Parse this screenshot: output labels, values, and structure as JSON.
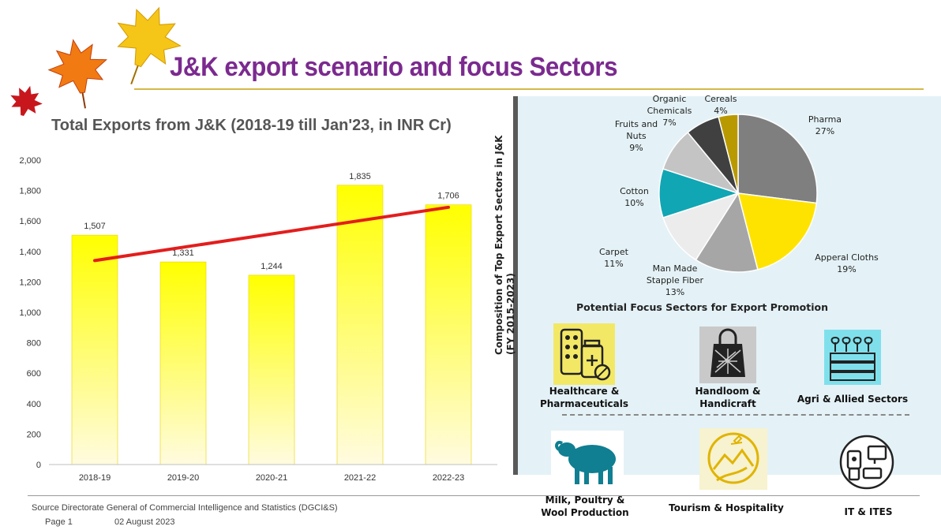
{
  "slide": {
    "title": "J&K export scenario and focus Sectors",
    "source": "Source Directorate General of Commercial Intelligence and Statistics (DGCI&S)",
    "page_label": "Page 1",
    "date": "02 August 2023"
  },
  "chart_data": [
    {
      "type": "bar",
      "title": "Total Exports from J&K (2018-19 till Jan'23, in INR Cr)",
      "categories": [
        "2018-19",
        "2019-20",
        "2020-21",
        "2021-22",
        "2022-23"
      ],
      "values": [
        1507,
        1331,
        1244,
        1835,
        1706
      ],
      "data_labels": [
        "1,507",
        "1,331",
        "1,244",
        "1,835",
        "1,706"
      ],
      "ylim": [
        0,
        2000
      ],
      "yticks": [
        "0",
        "200",
        "400",
        "600",
        "800",
        "1,000",
        "1,200",
        "1,400",
        "1,600",
        "1,800",
        "2,000"
      ],
      "trendline": {
        "from": 1340,
        "to": 1690
      },
      "colors": {
        "bar_top": "#ffff00",
        "bar_bottom": "#fffbe0",
        "trend": "#e31d1d"
      }
    },
    {
      "type": "pie",
      "ylabel": "Composition of Top Export Sectors in J&K (FY 2015-2023)",
      "slices": [
        {
          "label": "Pharma",
          "pct": "27%",
          "value": 27,
          "color": "#7f7f7f"
        },
        {
          "label": "Apperal Cloths",
          "pct": "19%",
          "value": 19,
          "color": "#ffe300"
        },
        {
          "label": "Man Made Stapple Fiber",
          "pct": "13%",
          "value": 13,
          "color": "#a6a6a6"
        },
        {
          "label": "Carpet",
          "pct": "11%",
          "value": 11,
          "color": "#ececec"
        },
        {
          "label": "Cotton",
          "pct": "10%",
          "value": 10,
          "color": "#10a6b4"
        },
        {
          "label": "Fruits and Nuts",
          "pct": "9%",
          "value": 9,
          "color": "#c4c4c4"
        },
        {
          "label": "Organic Chemicals",
          "pct": "7%",
          "value": 7,
          "color": "#404040"
        },
        {
          "label": "Cereals",
          "pct": "4%",
          "value": 4,
          "color": "#b89a00"
        }
      ]
    }
  ],
  "focus": {
    "title": "Potential Focus Sectors for Export Promotion",
    "sectors": [
      {
        "label_1": "Healthcare &",
        "label_2": "Pharmaceuticals",
        "icon": "pharma-icon",
        "bg": "#f3e865"
      },
      {
        "label_1": "Handloom &",
        "label_2": "Handicraft",
        "icon": "handloom-icon",
        "bg": "#c9c9c9"
      },
      {
        "label_1": "Agri & Allied Sectors",
        "label_2": "",
        "icon": "agri-icon",
        "bg": "#7fe0ec"
      },
      {
        "label_1": "Milk, Poultry &",
        "label_2": "Wool Production",
        "icon": "sheep-icon",
        "bg": "#ffffff"
      },
      {
        "label_1": "Tourism & Hospitality",
        "label_2": "",
        "icon": "tourism-icon",
        "bg": "#f7f2cf"
      },
      {
        "label_1": "IT & ITES",
        "label_2": "",
        "icon": "it-icon",
        "bg": "#ffffff"
      }
    ]
  }
}
